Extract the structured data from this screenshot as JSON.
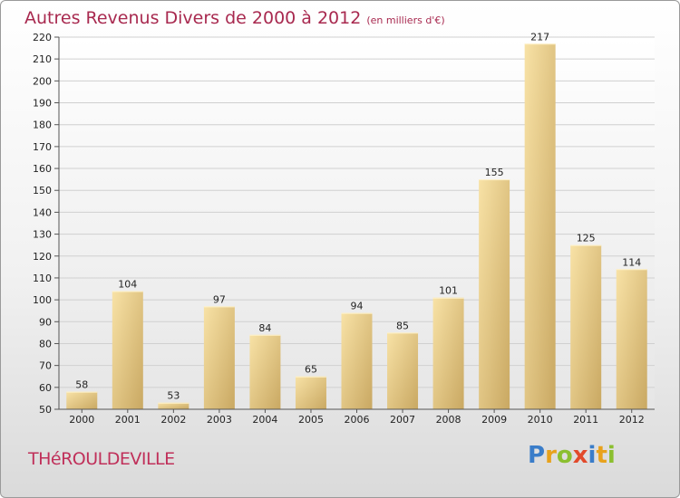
{
  "title": "Autres Revenus Divers de 2000 à 2012",
  "subtitle": "(en milliers d'€)",
  "town": "THéROULDEVILLE",
  "logo": {
    "letters": [
      "P",
      "r",
      "o",
      "x",
      "i",
      "t",
      "i"
    ],
    "colors": [
      "#3a7dc9",
      "#e8a21c",
      "#8bbf2f",
      "#e24a2b",
      "#3a7dc9",
      "#e8a21c",
      "#8bbf2f"
    ]
  },
  "colors": {
    "title": "#a8294f",
    "bar": "#e7c57f",
    "bar_light": "#f6dfa2"
  },
  "chart_data": {
    "type": "bar",
    "title": "Autres Revenus Divers de 2000 à 2012",
    "subtitle": "(en milliers d'€)",
    "categories": [
      "2000",
      "2001",
      "2002",
      "2003",
      "2004",
      "2005",
      "2006",
      "2007",
      "2008",
      "2009",
      "2010",
      "2011",
      "2012"
    ],
    "values": [
      58,
      104,
      53,
      97,
      84,
      65,
      94,
      85,
      101,
      155,
      217,
      125,
      114
    ],
    "ylim": [
      50,
      220
    ],
    "yticks": [
      50,
      60,
      70,
      80,
      90,
      100,
      110,
      120,
      130,
      140,
      150,
      160,
      170,
      180,
      190,
      200,
      210,
      220
    ],
    "grid": true,
    "xlabel": "",
    "ylabel": ""
  }
}
